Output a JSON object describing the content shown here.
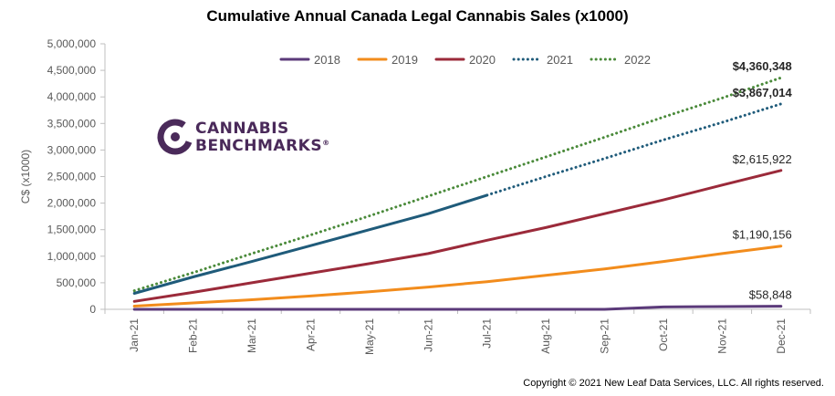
{
  "chart_data": {
    "type": "line",
    "title": "Cumulative Annual Canada Legal Cannabis Sales (x1000)",
    "ylabel": "C$ (x1000)",
    "xlabel": "",
    "categories": [
      "Jan-21",
      "Feb-21",
      "Mar-21",
      "Apr-21",
      "May-21",
      "Jun-21",
      "Jul-21",
      "Aug-21",
      "Sep-21",
      "Oct-21",
      "Nov-21",
      "Dec-21"
    ],
    "ylim": [
      0,
      5000000
    ],
    "yticks": [
      0,
      500000,
      1000000,
      1500000,
      2000000,
      2500000,
      3000000,
      3500000,
      4000000,
      4500000,
      5000000
    ],
    "ytick_labels": [
      "0",
      "500,000",
      "1,000,000",
      "1,500,000",
      "2,000,000",
      "2,500,000",
      "3,000,000",
      "3,500,000",
      "4,000,000",
      "4,500,000",
      "5,000,000"
    ],
    "grid": false,
    "legend_position": "top",
    "series": [
      {
        "name": "2018",
        "color": "#5b3a7a",
        "style": "solid",
        "values": [
          0,
          0,
          0,
          0,
          0,
          0,
          0,
          0,
          0,
          45000,
          52000,
          58848
        ]
      },
      {
        "name": "2019",
        "color": "#f28c1c",
        "style": "solid",
        "values": [
          60000,
          120000,
          180000,
          250000,
          330000,
          420000,
          520000,
          640000,
          760000,
          900000,
          1050000,
          1190156
        ]
      },
      {
        "name": "2020",
        "color": "#9b2a3a",
        "style": "solid",
        "values": [
          150000,
          320000,
          500000,
          680000,
          860000,
          1050000,
          1300000,
          1540000,
          1800000,
          2060000,
          2340000,
          2615922
        ]
      },
      {
        "name": "2021",
        "color": "#1f5b7a",
        "style": "mixed",
        "solid_until_index": 6,
        "values": [
          300000,
          610000,
          900000,
          1200000,
          1500000,
          1800000,
          2150000,
          2500000,
          2840000,
          3190000,
          3520000,
          3867014
        ]
      },
      {
        "name": "2022",
        "color": "#4a8a3a",
        "style": "dotted",
        "values": [
          350000,
          690000,
          1050000,
          1400000,
          1760000,
          2130000,
          2500000,
          2870000,
          3240000,
          3620000,
          3980000,
          4360348
        ]
      }
    ],
    "annotations": [
      {
        "series": "2022",
        "text": "$4,360,348",
        "bold": true
      },
      {
        "series": "2021",
        "text": "$3,867,014",
        "bold": true
      },
      {
        "series": "2020",
        "text": "$2,615,922",
        "bold": false
      },
      {
        "series": "2019",
        "text": "$1,190,156",
        "bold": false
      },
      {
        "series": "2018",
        "text": "$58,848",
        "bold": false
      }
    ]
  },
  "logo": {
    "line1": "CANNABIS",
    "line2": "BENCHMARKS",
    "registered": "®",
    "color": "#4a2a5a"
  },
  "copyright": "Copyright © 2021 New Leaf Data Services, LLC.  All rights reserved."
}
